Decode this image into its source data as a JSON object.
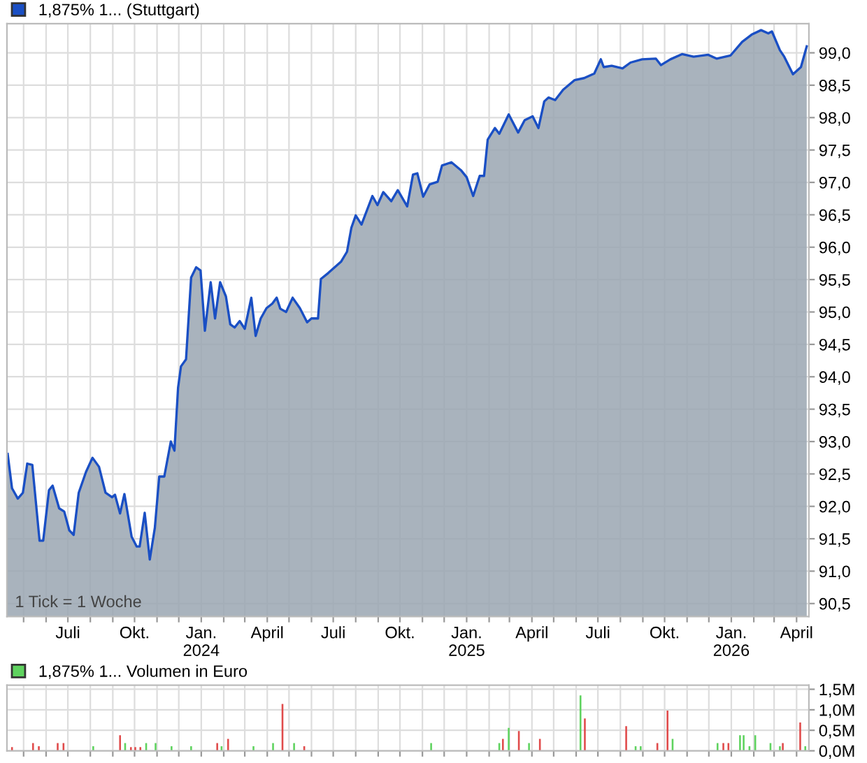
{
  "chart_data": [
    {
      "type": "area",
      "legend": "top left",
      "grid": true,
      "marker": "none",
      "x": [
        "2023-04-09",
        "2023-04-15",
        "2023-04-23",
        "2023-04-30",
        "2023-05-06",
        "2023-05-13",
        "2023-05-23",
        "2023-05-28",
        "2023-06-05",
        "2023-06-10",
        "2023-06-19",
        "2023-06-26",
        "2023-07-03",
        "2023-07-09",
        "2023-07-16",
        "2023-07-26",
        "2023-08-04",
        "2023-08-13",
        "2023-08-22",
        "2023-08-31",
        "2023-09-04",
        "2023-09-11",
        "2023-09-17",
        "2023-09-27",
        "2023-10-04",
        "2023-10-08",
        "2023-10-15",
        "2023-10-22",
        "2023-10-29",
        "2023-11-04",
        "2023-11-11",
        "2023-11-20",
        "2023-11-25",
        "2023-11-30",
        "2023-12-04",
        "2023-12-11",
        "2023-12-18",
        "2023-12-25",
        "2023-12-31",
        "2024-01-06",
        "2024-01-14",
        "2024-01-20",
        "2024-01-27",
        "2024-02-04",
        "2024-02-10",
        "2024-02-16",
        "2024-02-23",
        "2024-03-01",
        "2024-03-10",
        "2024-03-16",
        "2024-03-23",
        "2024-03-31",
        "2024-04-08",
        "2024-04-14",
        "2024-04-19",
        "2024-04-27",
        "2024-05-06",
        "2024-05-16",
        "2024-05-26",
        "2024-06-01",
        "2024-06-10",
        "2024-06-14",
        "2024-06-24",
        "2024-07-12",
        "2024-07-20",
        "2024-07-26",
        "2024-08-01",
        "2024-08-09",
        "2024-08-24",
        "2024-08-31",
        "2024-09-08",
        "2024-09-19",
        "2024-09-28",
        "2024-10-11",
        "2024-10-19",
        "2024-10-25",
        "2024-11-02",
        "2024-11-11",
        "2024-11-22",
        "2024-11-28",
        "2024-12-11",
        "2024-12-24",
        "2025-01-01",
        "2025-01-10",
        "2025-01-19",
        "2025-01-25",
        "2025-01-30",
        "2025-02-09",
        "2025-02-15",
        "2025-02-28",
        "2025-03-13",
        "2025-03-22",
        "2025-04-02",
        "2025-04-10",
        "2025-04-18",
        "2025-04-24",
        "2025-05-03",
        "2025-05-14",
        "2025-05-30",
        "2025-06-12",
        "2025-06-26",
        "2025-07-05",
        "2025-07-09",
        "2025-07-20",
        "2025-08-04",
        "2025-08-15",
        "2025-08-31",
        "2025-09-19",
        "2025-09-26",
        "2025-10-09",
        "2025-10-25",
        "2025-11-10",
        "2025-11-30",
        "2025-12-12",
        "2025-12-31",
        "2026-01-16",
        "2026-01-29",
        "2026-02-11",
        "2026-02-21",
        "2026-02-26",
        "2026-03-09",
        "2026-03-15",
        "2026-03-27",
        "2026-04-07",
        "2026-04-15"
      ],
      "series": [
        {
          "name": "1,875% 1... (Stuttgart)",
          "color": "#1a4fc4",
          "values": [
            92.81,
            92.28,
            92.12,
            92.21,
            92.66,
            92.64,
            91.47,
            91.47,
            92.25,
            92.32,
            91.97,
            91.92,
            91.63,
            91.56,
            92.21,
            92.53,
            92.75,
            92.61,
            92.21,
            92.14,
            92.18,
            91.89,
            92.19,
            91.53,
            91.38,
            91.38,
            91.9,
            91.18,
            91.67,
            92.46,
            92.46,
            93.0,
            92.86,
            93.83,
            94.16,
            94.27,
            95.53,
            95.69,
            95.64,
            94.71,
            95.46,
            94.9,
            95.46,
            95.24,
            94.81,
            94.76,
            94.86,
            94.74,
            95.22,
            94.63,
            94.9,
            95.06,
            95.13,
            95.22,
            95.05,
            95.0,
            95.22,
            95.06,
            94.84,
            94.9,
            94.9,
            95.51,
            95.6,
            95.78,
            95.93,
            96.3,
            96.49,
            96.35,
            96.79,
            96.65,
            96.85,
            96.71,
            96.88,
            96.63,
            97.12,
            97.14,
            96.78,
            96.97,
            97.01,
            97.26,
            97.31,
            97.19,
            97.08,
            96.79,
            97.1,
            97.1,
            97.66,
            97.84,
            97.75,
            98.05,
            97.77,
            97.96,
            98.02,
            97.84,
            98.25,
            98.31,
            98.27,
            98.43,
            98.58,
            98.61,
            98.68,
            98.9,
            98.78,
            98.8,
            98.76,
            98.85,
            98.9,
            98.91,
            98.81,
            98.9,
            98.98,
            98.94,
            98.97,
            98.91,
            98.96,
            99.17,
            99.28,
            99.35,
            99.3,
            99.33,
            99.04,
            98.94,
            98.67,
            98.78,
            99.1
          ]
        }
      ],
      "xlim": [
        "2023-04-08",
        "2026-04-18"
      ],
      "xticks": [
        {
          "value": "2023-05-01",
          "label": null
        },
        {
          "value": "2023-06-01",
          "label": null
        },
        {
          "value": "2023-07-01",
          "label": "Juli"
        },
        {
          "value": "2023-08-01",
          "label": null
        },
        {
          "value": "2023-09-01",
          "label": null
        },
        {
          "value": "2023-10-01",
          "label": "Okt."
        },
        {
          "value": "2023-11-01",
          "label": null
        },
        {
          "value": "2023-12-01",
          "label": null
        },
        {
          "value": "2024-01-01",
          "label": "Jan.\n2024"
        },
        {
          "value": "2024-02-01",
          "label": null
        },
        {
          "value": "2024-03-01",
          "label": null
        },
        {
          "value": "2024-04-01",
          "label": "April"
        },
        {
          "value": "2024-05-01",
          "label": null
        },
        {
          "value": "2024-06-01",
          "label": null
        },
        {
          "value": "2024-07-01",
          "label": "Juli"
        },
        {
          "value": "2024-08-01",
          "label": null
        },
        {
          "value": "2024-09-01",
          "label": null
        },
        {
          "value": "2024-10-01",
          "label": "Okt."
        },
        {
          "value": "2024-11-01",
          "label": null
        },
        {
          "value": "2024-12-01",
          "label": null
        },
        {
          "value": "2025-01-01",
          "label": "Jan.\n2025"
        },
        {
          "value": "2025-02-01",
          "label": null
        },
        {
          "value": "2025-03-01",
          "label": null
        },
        {
          "value": "2025-04-01",
          "label": "April"
        },
        {
          "value": "2025-05-01",
          "label": null
        },
        {
          "value": "2025-06-01",
          "label": null
        },
        {
          "value": "2025-07-01",
          "label": "Juli"
        },
        {
          "value": "2025-08-01",
          "label": null
        },
        {
          "value": "2025-09-01",
          "label": null
        },
        {
          "value": "2025-10-01",
          "label": "Okt."
        },
        {
          "value": "2025-11-01",
          "label": null
        },
        {
          "value": "2025-12-01",
          "label": null
        },
        {
          "value": "2026-01-01",
          "label": "Jan.\n2026"
        },
        {
          "value": "2026-02-01",
          "label": null
        },
        {
          "value": "2026-03-01",
          "label": null
        },
        {
          "value": "2026-04-01",
          "label": "April"
        }
      ],
      "ylim": [
        90.3,
        99.45
      ],
      "yticks": [
        {
          "value": 90.5,
          "label": "90,5"
        },
        {
          "value": 91.0,
          "label": "91,0"
        },
        {
          "value": 91.5,
          "label": "91,5"
        },
        {
          "value": 92.0,
          "label": "92,0"
        },
        {
          "value": 92.5,
          "label": "92,5"
        },
        {
          "value": 93.0,
          "label": "93,0"
        },
        {
          "value": 93.5,
          "label": "93,5"
        },
        {
          "value": 94.0,
          "label": "94,0"
        },
        {
          "value": 94.5,
          "label": "94,5"
        },
        {
          "value": 95.0,
          "label": "95,0"
        },
        {
          "value": 95.5,
          "label": "95,5"
        },
        {
          "value": 96.0,
          "label": "96,0"
        },
        {
          "value": 96.5,
          "label": "96,5"
        },
        {
          "value": 97.0,
          "label": "97,0"
        },
        {
          "value": 97.5,
          "label": "97,5"
        },
        {
          "value": 98.0,
          "label": "98,0"
        },
        {
          "value": 98.5,
          "label": "98,5"
        },
        {
          "value": 99.0,
          "label": "99,0"
        }
      ],
      "annotations": [
        "1 Tick = 1 Woche"
      ]
    },
    {
      "type": "bar",
      "legend": "top left",
      "grid": true,
      "tick_labels": "y",
      "series": [
        {
          "color": "#e04b4b",
          "x": [
            "2023-04-15",
            "2023-05-14",
            "2023-05-22",
            "2023-06-17",
            "2023-06-25",
            "2023-09-11",
            "2023-09-26",
            "2023-10-02",
            "2023-10-09",
            "2024-01-23",
            "2024-02-07",
            "2024-04-22",
            "2024-05-22",
            "2025-02-20",
            "2025-03-14",
            "2025-04-12",
            "2025-06-13",
            "2025-08-09",
            "2025-09-21",
            "2025-10-05",
            "2025-12-21",
            "2025-12-28",
            "2026-03-13",
            "2026-04-06"
          ],
          "values": [
            90000,
            190000,
            110000,
            190000,
            190000,
            380000,
            90000,
            90000,
            90000,
            190000,
            290000,
            1140000,
            110000,
            290000,
            480000,
            290000,
            790000,
            600000,
            190000,
            980000,
            190000,
            190000,
            190000,
            690000
          ]
        },
        {
          "name": "1,875% 1... Volumen in Euro",
          "color": "#5fd35f",
          "x": [
            "2023-08-05",
            "2023-09-18",
            "2023-10-17",
            "2023-10-30",
            "2023-11-21",
            "2023-12-18",
            "2024-01-29",
            "2024-03-13",
            "2024-04-09",
            "2024-05-08",
            "2024-11-13",
            "2025-02-15",
            "2025-02-28",
            "2025-03-28",
            "2025-06-07",
            "2025-08-22",
            "2025-08-29",
            "2025-10-12",
            "2025-12-13",
            "2026-01-13",
            "2026-01-18",
            "2026-01-26",
            "2026-02-03",
            "2026-02-24",
            "2026-03-09",
            "2026-04-13"
          ],
          "values": [
            110000,
            190000,
            190000,
            190000,
            110000,
            110000,
            110000,
            110000,
            190000,
            190000,
            190000,
            190000,
            560000,
            190000,
            1350000,
            110000,
            110000,
            290000,
            190000,
            380000,
            380000,
            110000,
            380000,
            190000,
            110000,
            110000
          ]
        }
      ],
      "xlim": [
        "2023-04-08",
        "2026-04-18"
      ],
      "xticks": [
        {
          "value": "2023-05-01",
          "label": null
        },
        {
          "value": "2023-06-01",
          "label": null
        },
        {
          "value": "2023-07-01",
          "label": null
        },
        {
          "value": "2023-08-01",
          "label": null
        },
        {
          "value": "2023-09-01",
          "label": null
        },
        {
          "value": "2023-10-01",
          "label": null
        },
        {
          "value": "2023-11-01",
          "label": null
        },
        {
          "value": "2023-12-01",
          "label": null
        },
        {
          "value": "2024-01-01",
          "label": null
        },
        {
          "value": "2024-02-01",
          "label": null
        },
        {
          "value": "2024-03-01",
          "label": null
        },
        {
          "value": "2024-04-01",
          "label": null
        },
        {
          "value": "2024-05-01",
          "label": null
        },
        {
          "value": "2024-06-01",
          "label": null
        },
        {
          "value": "2024-07-01",
          "label": null
        },
        {
          "value": "2024-08-01",
          "label": null
        },
        {
          "value": "2024-09-01",
          "label": null
        },
        {
          "value": "2024-10-01",
          "label": null
        },
        {
          "value": "2024-11-01",
          "label": null
        },
        {
          "value": "2024-12-01",
          "label": null
        },
        {
          "value": "2025-01-01",
          "label": null
        },
        {
          "value": "2025-02-01",
          "label": null
        },
        {
          "value": "2025-03-01",
          "label": null
        },
        {
          "value": "2025-04-01",
          "label": null
        },
        {
          "value": "2025-05-01",
          "label": null
        },
        {
          "value": "2025-06-01",
          "label": null
        },
        {
          "value": "2025-07-01",
          "label": null
        },
        {
          "value": "2025-08-01",
          "label": null
        },
        {
          "value": "2025-09-01",
          "label": null
        },
        {
          "value": "2025-10-01",
          "label": null
        },
        {
          "value": "2025-11-01",
          "label": null
        },
        {
          "value": "2025-12-01",
          "label": null
        },
        {
          "value": "2026-01-01",
          "label": null
        },
        {
          "value": "2026-02-01",
          "label": null
        },
        {
          "value": "2026-03-01",
          "label": null
        },
        {
          "value": "2026-04-01",
          "label": null
        }
      ],
      "ylim": [
        0,
        1600000
      ],
      "yticks": [
        {
          "value": 0,
          "label": "0,0M"
        },
        {
          "value": 500000,
          "label": "0,5M"
        },
        {
          "value": 1000000,
          "label": "1,0M"
        },
        {
          "value": 1500000,
          "label": "1,5M"
        }
      ]
    }
  ]
}
